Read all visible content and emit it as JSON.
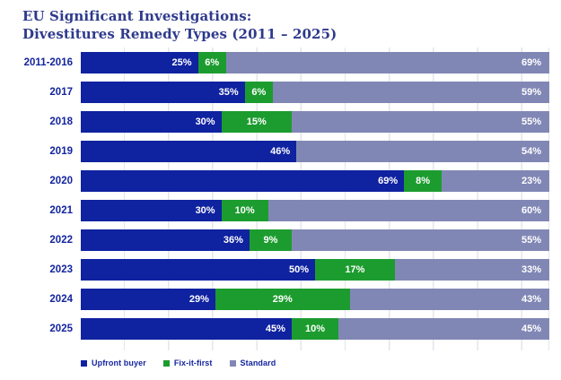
{
  "title": {
    "line1": "EU Significant Investigations:",
    "line2": "Divestitures Remedy Types (2011 – 2025)"
  },
  "colors": {
    "upfront_buyer": "#0f22a0",
    "fix_it_first": "#1c9c2f",
    "standard": "#8187b5",
    "title_text": "#2e3a8c",
    "axis_label_text": "#14259e",
    "gridline": "#e4e5ed",
    "bar_value_text": "#ffffff"
  },
  "chart_data": {
    "type": "bar",
    "orientation": "horizontal-stacked",
    "title": "EU Significant Investigations: Divestitures Remedy Types (2011 – 2025)",
    "categories": [
      "2011-2016",
      "2017",
      "2018",
      "2019",
      "2020",
      "2021",
      "2022",
      "2023",
      "2024",
      "2025"
    ],
    "series": [
      {
        "name": "Upfront buyer",
        "color": "#0f22a0",
        "values": [
          25,
          35,
          30,
          46,
          69,
          30,
          36,
          50,
          29,
          45
        ]
      },
      {
        "name": "Fix-it-first",
        "color": "#1c9c2f",
        "values": [
          6,
          6,
          15,
          0,
          8,
          10,
          9,
          17,
          29,
          10
        ]
      },
      {
        "name": "Standard",
        "color": "#8187b5",
        "values": [
          69,
          59,
          55,
          54,
          23,
          60,
          55,
          33,
          43,
          45
        ]
      }
    ],
    "value_format": "percent",
    "value_suffix": "%",
    "xlim": [
      0,
      100
    ],
    "grid": true,
    "legend_position": "bottom-left",
    "legend": [
      "Upfront buyer",
      "Fix-it-first",
      "Standard"
    ]
  }
}
